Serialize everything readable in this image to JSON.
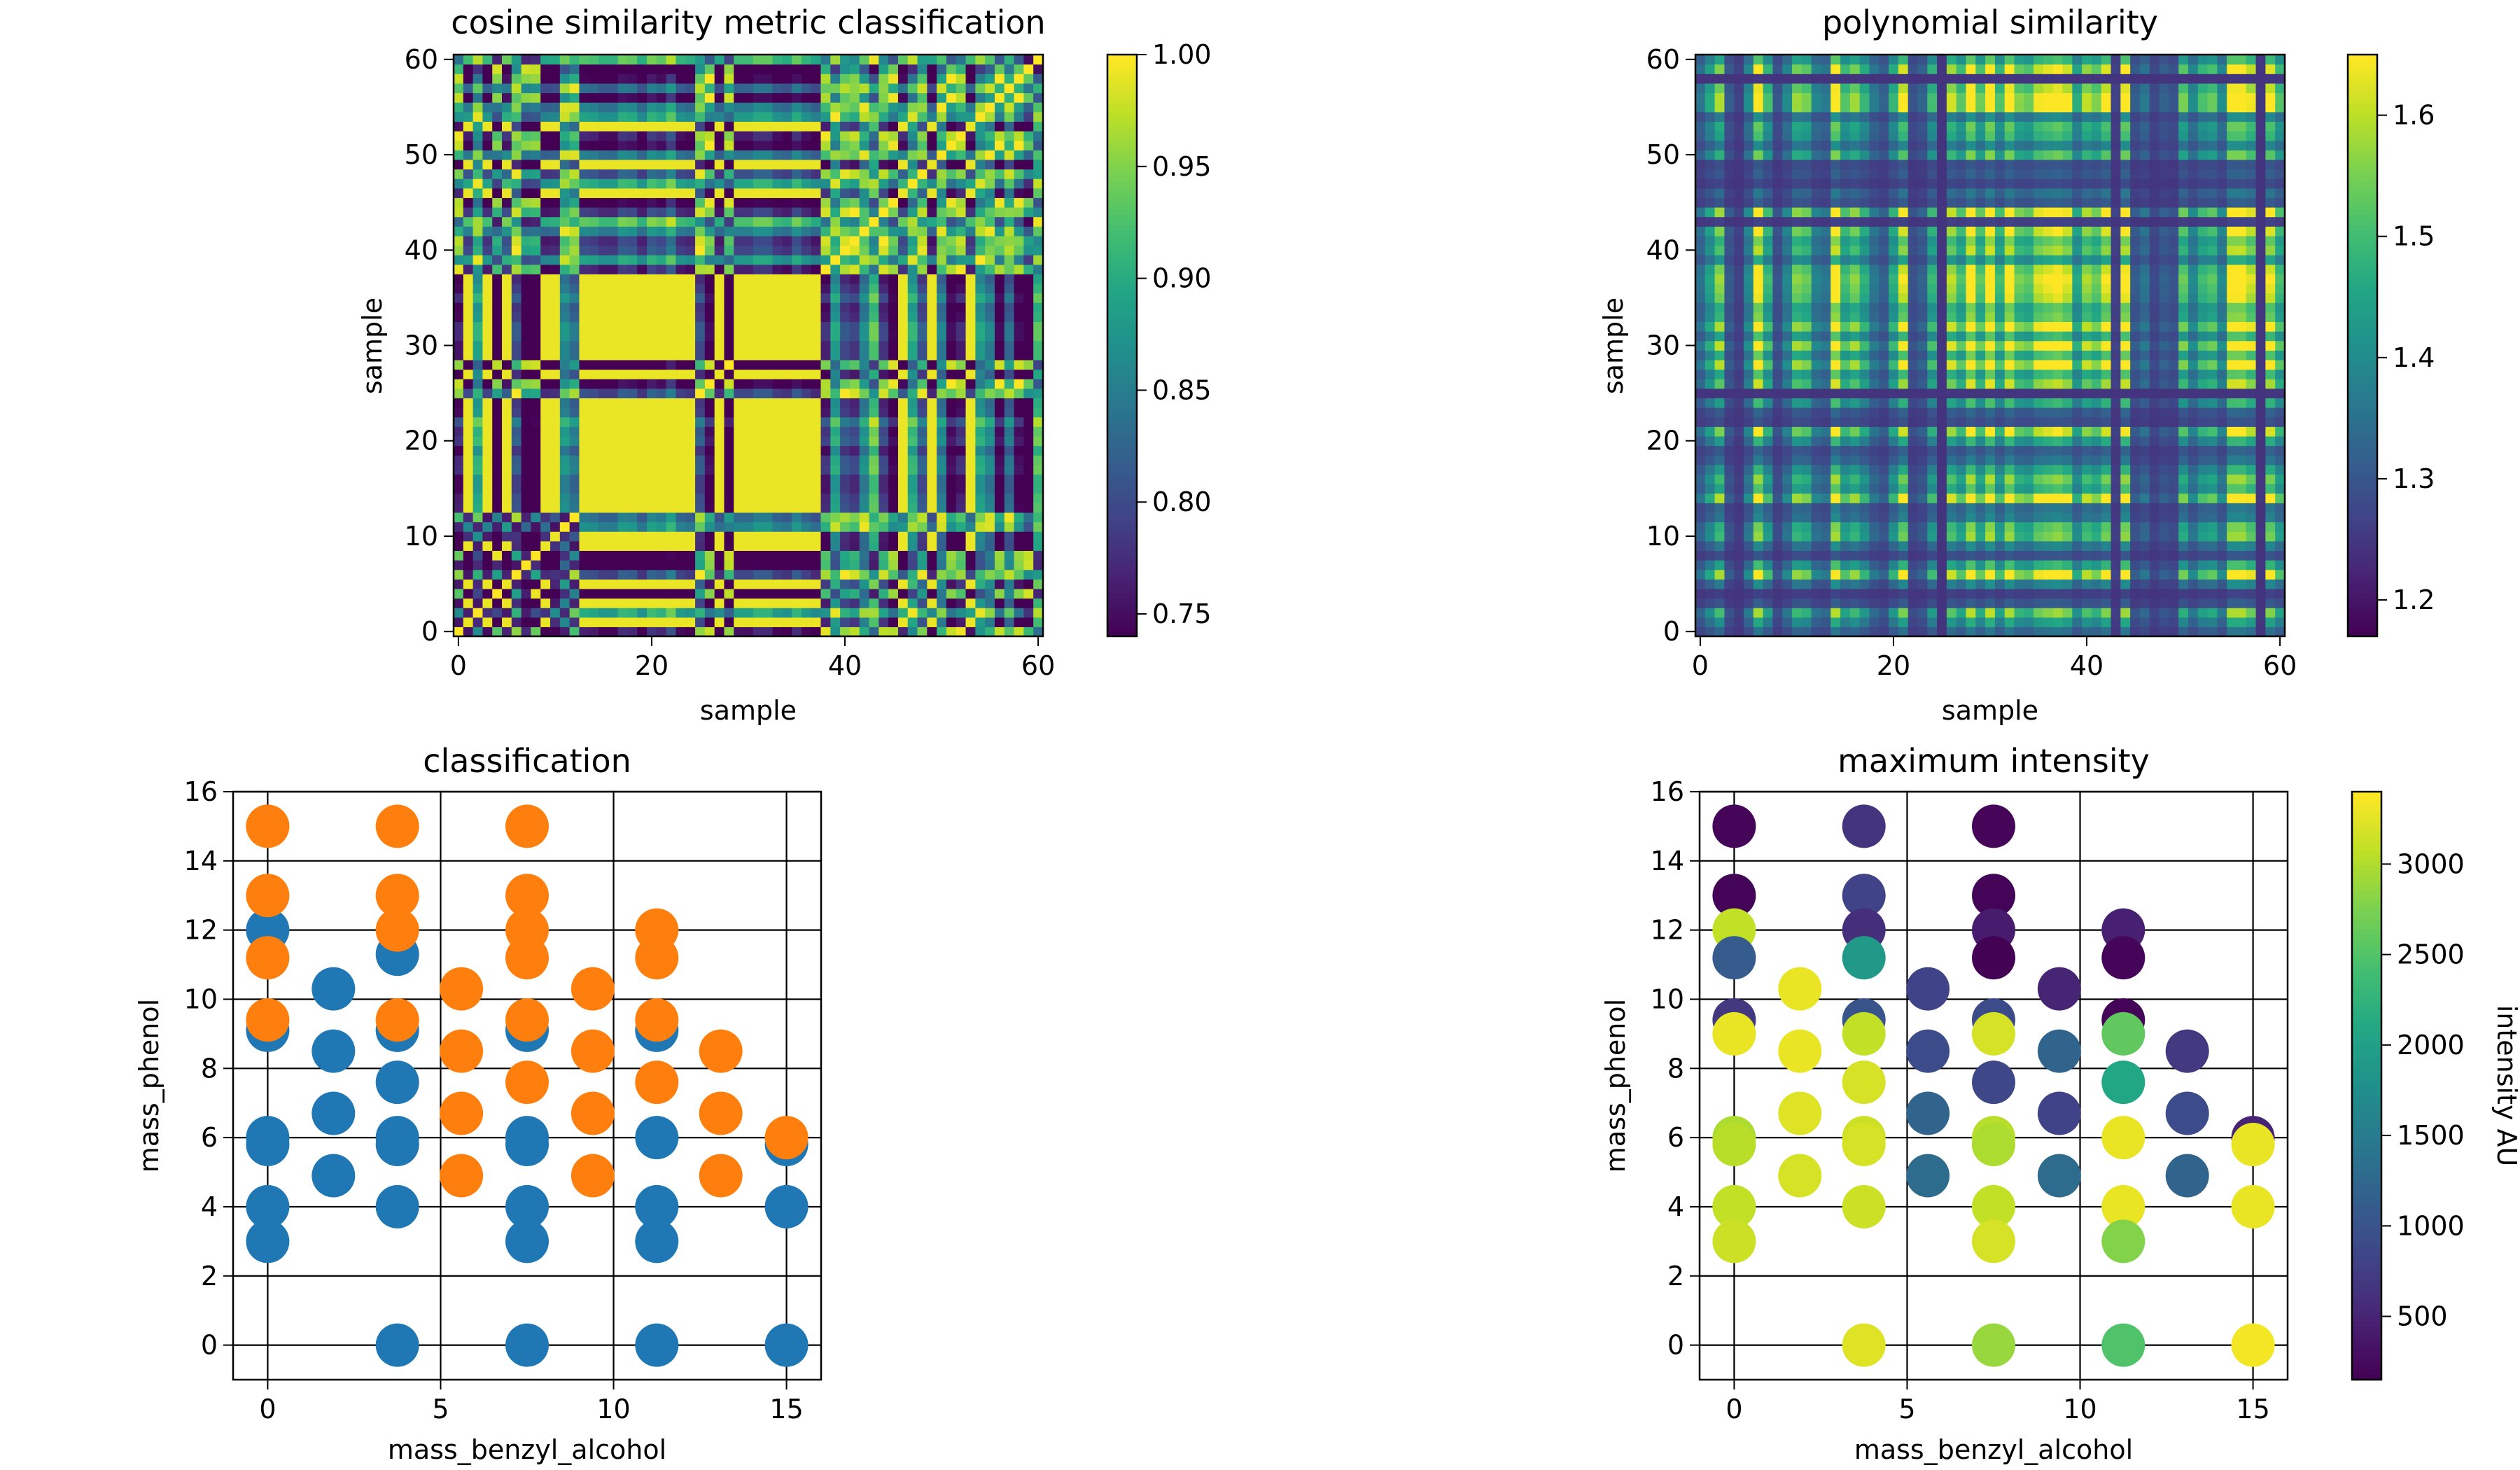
{
  "chart_data": [
    {
      "panel": "top-left",
      "type": "heatmap",
      "title": "cosine similarity metric classification",
      "xlabel": "sample",
      "ylabel": "sample",
      "xlim": [
        0,
        60
      ],
      "ylim": [
        0,
        60
      ],
      "xticks": [
        "0",
        "20",
        "40",
        "60"
      ],
      "yticks": [
        "0",
        "10",
        "20",
        "30",
        "40",
        "50",
        "60"
      ],
      "colorbar": {
        "range": [
          0.74,
          1.0
        ],
        "ticks": [
          "0.75",
          "0.80",
          "0.85",
          "0.90",
          "0.95",
          "1.00"
        ],
        "colormap": "viridis"
      },
      "matrix_note": "61x61 symmetric matrix; block pattern with values mostly 0.74–1.00"
    },
    {
      "panel": "top-right",
      "type": "heatmap",
      "title": "polynomial similarity",
      "xlabel": "sample",
      "ylabel": "sample",
      "xlim": [
        0,
        60
      ],
      "ylim": [
        0,
        60
      ],
      "xticks": [
        "0",
        "20",
        "40",
        "60"
      ],
      "yticks": [
        "0",
        "10",
        "20",
        "30",
        "40",
        "50",
        "60"
      ],
      "colorbar": {
        "range": [
          1.17,
          1.65
        ],
        "ticks": [
          "1.2",
          "1.3",
          "1.4",
          "1.5",
          "1.6"
        ],
        "colormap": "viridis"
      }
    },
    {
      "panel": "bottom-left",
      "type": "scatter",
      "title": "classification",
      "xlabel": "mass_benzyl_alcohol",
      "ylabel": "mass_phenol",
      "xlim": [
        -1,
        16
      ],
      "ylim": [
        -1,
        16
      ],
      "xticks": [
        "0",
        "5",
        "10",
        "15"
      ],
      "yticks": [
        "0",
        "2",
        "4",
        "6",
        "8",
        "10",
        "12",
        "14",
        "16"
      ],
      "grid": true,
      "series": [
        {
          "color": "#1f77b4",
          "points": [
            [
              0,
              12
            ],
            [
              0,
              9.1
            ],
            [
              0,
              6
            ],
            [
              0,
              5.8
            ],
            [
              0,
              4
            ],
            [
              0,
              3
            ],
            [
              1.9,
              10.3
            ],
            [
              1.9,
              8.5
            ],
            [
              1.9,
              6.7
            ],
            [
              1.9,
              4.9
            ],
            [
              3.75,
              11.3
            ],
            [
              3.75,
              9.1
            ],
            [
              3.75,
              7.6
            ],
            [
              3.75,
              6
            ],
            [
              3.75,
              5.8
            ],
            [
              3.75,
              4
            ],
            [
              3.75,
              0
            ],
            [
              7.5,
              9.1
            ],
            [
              7.5,
              6
            ],
            [
              7.5,
              5.8
            ],
            [
              7.5,
              4
            ],
            [
              7.5,
              3
            ],
            [
              7.5,
              0
            ],
            [
              11.25,
              9.1
            ],
            [
              11.25,
              6
            ],
            [
              11.25,
              4
            ],
            [
              11.25,
              3
            ],
            [
              11.25,
              0
            ],
            [
              15,
              5.8
            ],
            [
              15,
              4
            ],
            [
              15,
              0
            ]
          ]
        },
        {
          "color": "#ff7f0e",
          "points": [
            [
              0,
              15
            ],
            [
              0,
              13
            ],
            [
              0,
              11.2
            ],
            [
              0,
              9.4
            ],
            [
              3.75,
              15
            ],
            [
              3.75,
              13
            ],
            [
              3.75,
              12
            ],
            [
              3.75,
              9.4
            ],
            [
              5.6,
              10.3
            ],
            [
              5.6,
              8.5
            ],
            [
              5.6,
              6.7
            ],
            [
              5.6,
              4.9
            ],
            [
              7.5,
              15
            ],
            [
              7.5,
              13
            ],
            [
              7.5,
              12
            ],
            [
              7.5,
              11.2
            ],
            [
              7.5,
              9.4
            ],
            [
              7.5,
              7.6
            ],
            [
              9.4,
              10.3
            ],
            [
              9.4,
              8.5
            ],
            [
              9.4,
              6.7
            ],
            [
              9.4,
              4.9
            ],
            [
              11.25,
              12
            ],
            [
              11.25,
              11.2
            ],
            [
              11.25,
              9.4
            ],
            [
              11.25,
              7.6
            ],
            [
              13.1,
              8.5
            ],
            [
              13.1,
              6.7
            ],
            [
              13.1,
              4.9
            ],
            [
              15,
              6
            ]
          ]
        }
      ]
    },
    {
      "panel": "bottom-right",
      "type": "scatter",
      "title": "maximum intensity",
      "xlabel": "mass_benzyl_alcohol",
      "ylabel": "mass_phenol",
      "xlim": [
        -1,
        16
      ],
      "ylim": [
        -1,
        16
      ],
      "xticks": [
        "0",
        "5",
        "10",
        "15"
      ],
      "yticks": [
        "0",
        "2",
        "4",
        "6",
        "8",
        "10",
        "12",
        "14",
        "16"
      ],
      "grid": true,
      "colorbar": {
        "label": "intensity AU",
        "range": [
          150,
          3400
        ],
        "ticks": [
          "500",
          "1000",
          "1500",
          "2000",
          "2500",
          "3000"
        ],
        "colormap": "viridis"
      },
      "points": [
        [
          0,
          15,
          200
        ],
        [
          0,
          13,
          180
        ],
        [
          0,
          12,
          3100
        ],
        [
          0,
          11.2,
          1100
        ],
        [
          0,
          9.4,
          700
        ],
        [
          0,
          9.0,
          3300
        ],
        [
          0,
          6,
          3000
        ],
        [
          0,
          5.8,
          3050
        ],
        [
          0,
          4,
          3100
        ],
        [
          0,
          3,
          3150
        ],
        [
          1.9,
          10.3,
          3300
        ],
        [
          1.9,
          8.5,
          3300
        ],
        [
          1.9,
          6.7,
          3250
        ],
        [
          1.9,
          4.9,
          3200
        ],
        [
          3.75,
          15,
          650
        ],
        [
          3.75,
          13,
          800
        ],
        [
          3.75,
          12,
          600
        ],
        [
          3.75,
          11.2,
          1900
        ],
        [
          3.75,
          9.4,
          1000
        ],
        [
          3.75,
          9.0,
          3100
        ],
        [
          3.75,
          7.6,
          3200
        ],
        [
          3.75,
          6,
          3150
        ],
        [
          3.75,
          5.8,
          3200
        ],
        [
          3.75,
          4,
          3150
        ],
        [
          3.75,
          0,
          3250
        ],
        [
          5.6,
          10.3,
          800
        ],
        [
          5.6,
          8.5,
          900
        ],
        [
          5.6,
          6.7,
          1200
        ],
        [
          5.6,
          4.9,
          1300
        ],
        [
          7.5,
          15,
          200
        ],
        [
          7.5,
          13,
          180
        ],
        [
          7.5,
          12,
          400
        ],
        [
          7.5,
          11.2,
          160
        ],
        [
          7.5,
          9.4,
          900
        ],
        [
          7.5,
          9.0,
          3200
        ],
        [
          7.5,
          7.6,
          850
        ],
        [
          7.5,
          6,
          3050
        ],
        [
          7.5,
          5.8,
          3000
        ],
        [
          7.5,
          4,
          3100
        ],
        [
          7.5,
          3,
          3200
        ],
        [
          7.5,
          0,
          2900
        ],
        [
          9.4,
          10.3,
          500
        ],
        [
          9.4,
          8.5,
          1200
        ],
        [
          9.4,
          6.7,
          800
        ],
        [
          9.4,
          4.9,
          1300
        ],
        [
          11.25,
          12,
          450
        ],
        [
          11.25,
          11.2,
          200
        ],
        [
          11.25,
          9.4,
          190
        ],
        [
          11.25,
          9.0,
          2600
        ],
        [
          11.25,
          7.6,
          2100
        ],
        [
          11.25,
          6,
          3300
        ],
        [
          11.25,
          4,
          3300
        ],
        [
          11.25,
          3,
          2800
        ],
        [
          11.25,
          0,
          2500
        ],
        [
          13.1,
          8.5,
          700
        ],
        [
          13.1,
          6.7,
          900
        ],
        [
          13.1,
          4.9,
          1200
        ],
        [
          15,
          6,
          500
        ],
        [
          15,
          5.8,
          3300
        ],
        [
          15,
          4,
          3300
        ],
        [
          15,
          0,
          3350
        ]
      ]
    }
  ]
}
